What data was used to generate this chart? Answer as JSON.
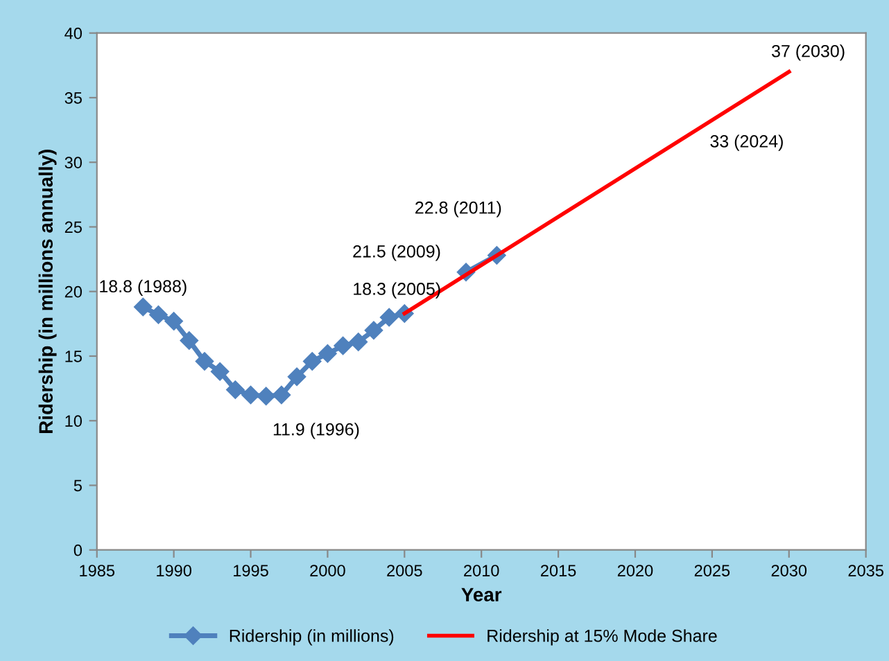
{
  "chart_data": {
    "type": "line",
    "xlabel": "Year",
    "ylabel": "Ridership (in millions annually)",
    "xlim": [
      1985,
      2035
    ],
    "xticks": [
      1985,
      1990,
      1995,
      2000,
      2005,
      2010,
      2015,
      2020,
      2025,
      2030,
      2035
    ],
    "ylim": [
      0,
      40
    ],
    "yticks": [
      0,
      5,
      10,
      15,
      20,
      25,
      30,
      35,
      40
    ],
    "grid": false,
    "legend": "bottom",
    "series": [
      {
        "name": "Ridership (in millions)",
        "color": "#4f81bd",
        "marker": "diamond",
        "x": [
          1988,
          1989,
          1990,
          1991,
          1992,
          1993,
          1994,
          1995,
          1996,
          1997,
          1998,
          1999,
          2000,
          2001,
          2002,
          2003,
          2004,
          2005,
          2007,
          2009,
          2011
        ],
        "values": [
          18.8,
          18.2,
          17.7,
          16.2,
          14.6,
          13.8,
          12.4,
          12.0,
          11.9,
          12.0,
          13.4,
          14.6,
          15.2,
          15.8,
          16.1,
          17.0,
          18.0,
          18.3,
          null,
          21.5,
          22.8
        ]
      },
      {
        "name": "Ridership at 15% Mode Share",
        "color": "#ff0000",
        "marker": "none",
        "x": [
          2005,
          2030
        ],
        "values": [
          18.3,
          37
        ]
      }
    ],
    "annotations": [
      {
        "text": "18.8 (1988)",
        "x": 1988,
        "y": 18.8
      },
      {
        "text": "11.9 (1996)",
        "x": 1996,
        "y": 11.9
      },
      {
        "text": "18.3 (2005)",
        "x": 2005,
        "y": 18.3
      },
      {
        "text": "21.5 (2009)",
        "x": 2009,
        "y": 21.5
      },
      {
        "text": "22.8 (2011)",
        "x": 2011,
        "y": 22.8
      },
      {
        "text": "33 (2024)",
        "x": 2024,
        "y": 33
      },
      {
        "text": "37 (2030)",
        "x": 2030,
        "y": 37
      }
    ]
  }
}
